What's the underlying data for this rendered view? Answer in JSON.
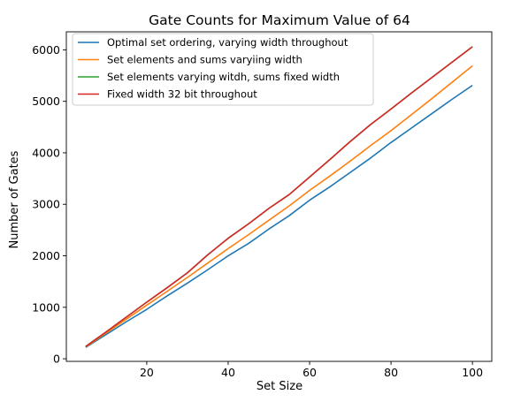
{
  "chart_data": {
    "type": "line",
    "title": "Gate Counts for Maximum Value of 64",
    "xlabel": "Set Size",
    "ylabel": "Number of Gates",
    "xlim": [
      0.25,
      104.75
    ],
    "ylim": [
      -50,
      6350
    ],
    "xticks": [
      20,
      40,
      60,
      80,
      100
    ],
    "yticks": [
      0,
      1000,
      2000,
      3000,
      4000,
      5000,
      6000
    ],
    "grid": false,
    "legend_position": "top-left",
    "x": [
      5,
      10,
      15,
      20,
      25,
      30,
      35,
      40,
      45,
      50,
      55,
      60,
      65,
      70,
      75,
      80,
      85,
      90,
      95,
      100
    ],
    "series": [
      {
        "name": "Optimal set ordering, varying width throughout",
        "color": "#1f77b4",
        "values": [
          220,
          470,
          720,
          960,
          1220,
          1470,
          1730,
          2000,
          2240,
          2520,
          2780,
          3080,
          3340,
          3620,
          3900,
          4200,
          4480,
          4760,
          5040,
          5310
        ]
      },
      {
        "name": "Set elements and sums varyiing width",
        "color": "#ff7f0e",
        "values": [
          230,
          500,
          770,
          1040,
          1310,
          1580,
          1860,
          2140,
          2410,
          2690,
          2970,
          3270,
          3550,
          3840,
          4140,
          4430,
          4740,
          5050,
          5370,
          5690
        ]
      },
      {
        "name": "Set elements varying witdh, sums fixed width",
        "color": "#2ca02c",
        "values": [
          240,
          520,
          810,
          1100,
          1380,
          1670,
          2020,
          2340,
          2620,
          2920,
          3190,
          3530,
          3870,
          4220,
          4550,
          4850,
          5160,
          5460,
          5760,
          6060
        ]
      },
      {
        "name": "Fixed width 32 bit throughout",
        "color": "#d62728",
        "values": [
          240,
          520,
          810,
          1100,
          1380,
          1670,
          2020,
          2340,
          2620,
          2920,
          3190,
          3530,
          3870,
          4220,
          4550,
          4850,
          5160,
          5460,
          5760,
          6060
        ]
      }
    ]
  }
}
